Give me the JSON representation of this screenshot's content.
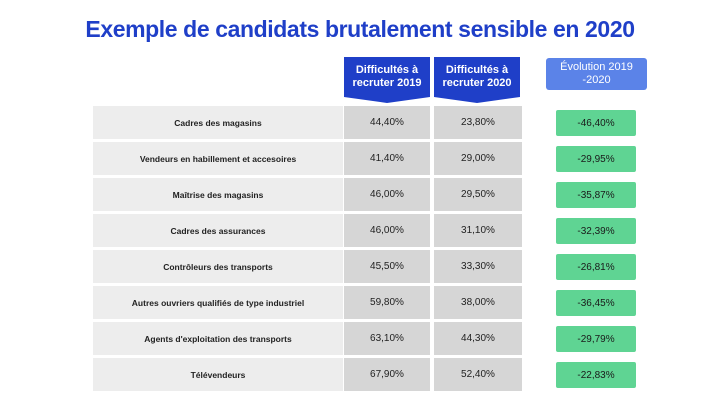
{
  "chart_data": {
    "type": "table",
    "title": "Exemple de candidats brutalement sensible en 2020",
    "columns": [
      "Difficultés à recruter 2019",
      "Difficultés à recruter 2020",
      "Évolution 2019 -2020"
    ],
    "rows": [
      {
        "label": "Cadres des magasins",
        "v2019": "44,40%",
        "v2020": "23,80%",
        "evolution": "-46,40%"
      },
      {
        "label": "Vendeurs en habillement et accesoires",
        "v2019": "41,40%",
        "v2020": "29,00%",
        "evolution": "-29,95%"
      },
      {
        "label": "Maîtrise des magasins",
        "v2019": "46,00%",
        "v2020": "29,50%",
        "evolution": "-35,87%"
      },
      {
        "label": "Cadres des assurances",
        "v2019": "46,00%",
        "v2020": "31,10%",
        "evolution": "-32,39%"
      },
      {
        "label": "Contrôleurs des transports",
        "v2019": "45,50%",
        "v2020": "33,30%",
        "evolution": "-26,81%"
      },
      {
        "label": "Autres ouvriers qualifiés de type industriel",
        "v2019": "59,80%",
        "v2020": "38,00%",
        "evolution": "-36,45%"
      },
      {
        "label": "Agents d'exploitation des transports",
        "v2019": "63,10%",
        "v2020": "44,30%",
        "evolution": "-29,79%"
      },
      {
        "label": "Télévendeurs",
        "v2019": "67,90%",
        "v2020": "52,40%",
        "evolution": "-22,83%"
      }
    ]
  },
  "colors": {
    "title": "#1f3fc8",
    "header_dark": "#1f3fc8",
    "header_light": "#5b83e8",
    "label_bg": "#ededed",
    "value_bg": "#d6d6d6",
    "evolution_bg": "#5fd493"
  }
}
